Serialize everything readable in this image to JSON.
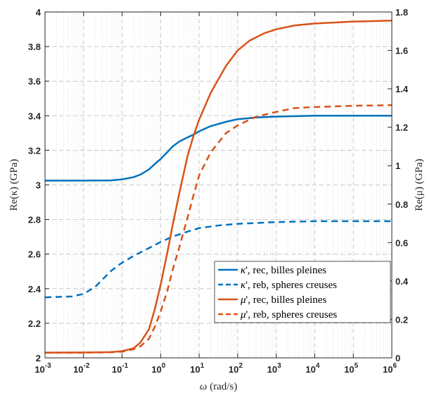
{
  "chart_data": {
    "type": "line",
    "xscale": "log",
    "xlim": [
      0.001,
      1000000
    ],
    "xticks": [
      0.001,
      0.01,
      0.1,
      1,
      10,
      100,
      1000,
      10000,
      100000,
      1000000
    ],
    "xticks_exp": [
      "-3",
      "-2",
      "-1",
      "0",
      "1",
      "2",
      "3",
      "4",
      "5",
      "6"
    ],
    "tick_base": "10",
    "xlabel_var": "ω",
    "xlabel_unit": "(rad/s)",
    "ylim_left": [
      2,
      4
    ],
    "yticks_left": [
      "2",
      "2.2",
      "2.4",
      "2.6",
      "2.8",
      "3",
      "3.2",
      "3.4",
      "3.6",
      "3.8",
      "4"
    ],
    "ylabel_left": "Re(κ) (GPa)",
    "ylim_right": [
      0,
      1.8
    ],
    "yticks_right": [
      "0",
      "0.2",
      "0.4",
      "0.6",
      "0.8",
      "1",
      "1.2",
      "1.4",
      "1.6",
      "1.8"
    ],
    "ylabel_right": "Re(μ) (GPa)",
    "grid": true,
    "legend_position": "lower-right",
    "series": [
      {
        "name": "κ', rec, billes pleines",
        "legend_symbol": "κ",
        "legend_rest": "', rec, billes pleines",
        "axis": "left",
        "color": "#0072BD",
        "style": "solid",
        "points": [
          [
            0.001,
            3.025
          ],
          [
            0.01,
            3.025
          ],
          [
            0.05,
            3.026
          ],
          [
            0.1,
            3.032
          ],
          [
            0.2,
            3.045
          ],
          [
            0.3,
            3.06
          ],
          [
            0.5,
            3.09
          ],
          [
            0.7,
            3.12
          ],
          [
            1,
            3.15
          ],
          [
            1.5,
            3.19
          ],
          [
            2,
            3.22
          ],
          [
            3,
            3.25
          ],
          [
            5,
            3.275
          ],
          [
            7,
            3.29
          ],
          [
            10,
            3.31
          ],
          [
            20,
            3.34
          ],
          [
            50,
            3.365
          ],
          [
            100,
            3.38
          ],
          [
            300,
            3.39
          ],
          [
            1000,
            3.395
          ],
          [
            10000,
            3.4
          ],
          [
            1000000,
            3.4
          ]
        ]
      },
      {
        "name": "κ', reb, spheres creuses",
        "legend_symbol": "κ",
        "legend_rest": "', reb, spheres creuses",
        "axis": "left",
        "color": "#0072BD",
        "style": "dashed",
        "points": [
          [
            0.001,
            2.35
          ],
          [
            0.005,
            2.355
          ],
          [
            0.01,
            2.37
          ],
          [
            0.02,
            2.41
          ],
          [
            0.03,
            2.45
          ],
          [
            0.05,
            2.5
          ],
          [
            0.08,
            2.535
          ],
          [
            0.1,
            2.55
          ],
          [
            0.2,
            2.59
          ],
          [
            0.5,
            2.635
          ],
          [
            1,
            2.67
          ],
          [
            2,
            2.7
          ],
          [
            5,
            2.73
          ],
          [
            10,
            2.75
          ],
          [
            30,
            2.765
          ],
          [
            100,
            2.775
          ],
          [
            1000,
            2.785
          ],
          [
            10000,
            2.79
          ],
          [
            1000000,
            2.79
          ]
        ]
      },
      {
        "name": "μ', rec, billes pleines",
        "legend_symbol": "μ",
        "legend_rest": "', rec, billes pleines",
        "axis": "right",
        "color": "#D95319",
        "style": "solid",
        "points": [
          [
            0.001,
            0.027
          ],
          [
            0.01,
            0.028
          ],
          [
            0.05,
            0.03
          ],
          [
            0.1,
            0.035
          ],
          [
            0.2,
            0.05
          ],
          [
            0.3,
            0.08
          ],
          [
            0.5,
            0.15
          ],
          [
            0.7,
            0.25
          ],
          [
            1,
            0.38
          ],
          [
            1.5,
            0.55
          ],
          [
            2,
            0.68
          ],
          [
            3,
            0.85
          ],
          [
            5,
            1.05
          ],
          [
            7,
            1.15
          ],
          [
            10,
            1.24
          ],
          [
            20,
            1.38
          ],
          [
            50,
            1.52
          ],
          [
            100,
            1.6
          ],
          [
            200,
            1.65
          ],
          [
            500,
            1.69
          ],
          [
            1000,
            1.71
          ],
          [
            3000,
            1.73
          ],
          [
            10000,
            1.74
          ],
          [
            100000,
            1.75
          ],
          [
            1000000,
            1.755
          ]
        ]
      },
      {
        "name": "μ', reb, spheres creuses",
        "legend_symbol": "μ",
        "legend_rest": "', reb, spheres creuses",
        "axis": "right",
        "color": "#D95319",
        "style": "dashed",
        "points": [
          [
            0.001,
            0.027
          ],
          [
            0.01,
            0.027
          ],
          [
            0.05,
            0.029
          ],
          [
            0.1,
            0.032
          ],
          [
            0.2,
            0.045
          ],
          [
            0.3,
            0.06
          ],
          [
            0.5,
            0.1
          ],
          [
            0.7,
            0.16
          ],
          [
            1,
            0.24
          ],
          [
            1.5,
            0.35
          ],
          [
            2,
            0.45
          ],
          [
            3,
            0.57
          ],
          [
            5,
            0.73
          ],
          [
            7,
            0.84
          ],
          [
            10,
            0.95
          ],
          [
            20,
            1.07
          ],
          [
            50,
            1.17
          ],
          [
            100,
            1.21
          ],
          [
            300,
            1.255
          ],
          [
            1000,
            1.28
          ],
          [
            3000,
            1.3
          ],
          [
            10000,
            1.305
          ],
          [
            100000,
            1.312
          ],
          [
            1000000,
            1.315
          ]
        ]
      }
    ]
  }
}
